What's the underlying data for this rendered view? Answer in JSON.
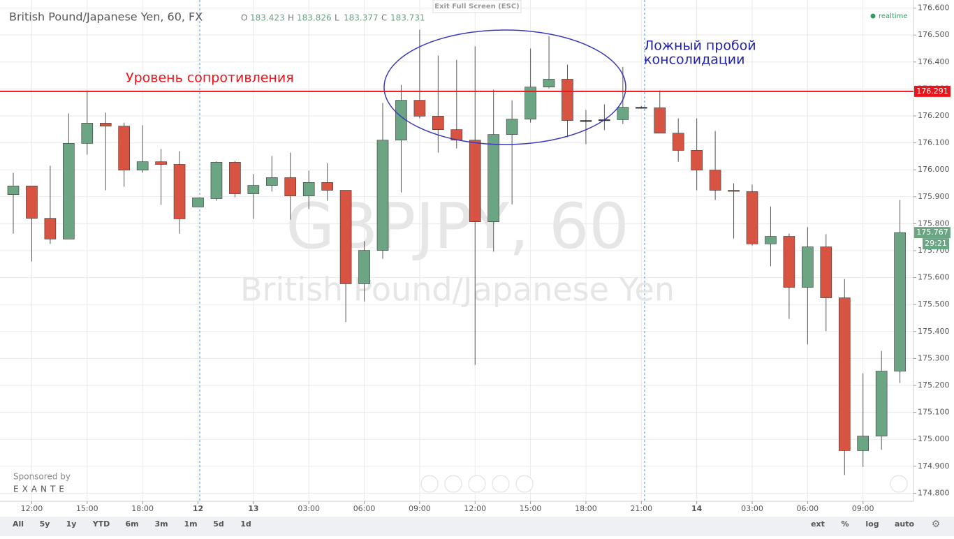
{
  "chart_data": {
    "type": "candlestick",
    "title": "British Pound/Japanese Yen, 60, FX",
    "ohlc_legend": [
      {
        "label": "O",
        "value": 183.423
      },
      {
        "label": "H",
        "value": 183.826
      },
      {
        "label": "L",
        "value": 183.377
      },
      {
        "label": "C",
        "value": 183.731
      }
    ],
    "exit_button": "Exit Full Screen (ESC)",
    "status": "realtime",
    "watermark": [
      "GBPJPY, 60",
      "British Pound/Japanese Yen"
    ],
    "sponsor": [
      "Sponsored by",
      "EXANTE"
    ],
    "categories": [
      null,
      "12:00",
      null,
      null,
      "15:00",
      null,
      null,
      "18:00",
      null,
      null,
      "12",
      null,
      null,
      "13",
      null,
      null,
      "03:00",
      null,
      null,
      "06:00",
      null,
      null,
      "09:00",
      null,
      null,
      "12:00",
      null,
      null,
      "15:00",
      null,
      null,
      "18:00",
      null,
      null,
      "21:00",
      null,
      null,
      "14",
      null,
      null,
      "03:00",
      null,
      null,
      "06:00",
      null,
      null,
      "09:00",
      null,
      null
    ],
    "open": [
      175.908,
      175.94,
      175.82,
      175.743,
      176.098,
      176.173,
      176.162,
      175.999,
      176.03,
      176.02,
      175.862,
      175.893,
      176.028,
      175.911,
      175.942,
      175.971,
      175.903,
      175.953,
      175.924,
      175.577,
      175.701,
      176.11,
      176.258,
      176.199,
      176.149,
      176.11,
      175.807,
      176.131,
      176.188,
      176.307,
      176.336,
      176.183,
      176.186,
      176.186,
      176.232,
      176.23,
      176.136,
      176.072,
      175.999,
      175.924,
      175.919,
      175.725,
      175.753,
      175.564,
      175.714,
      175.525,
      174.958,
      175.012,
      175.253
    ],
    "high": [
      175.989,
      175.94,
      176.015,
      176.209,
      176.294,
      176.212,
      176.175,
      176.165,
      176.077,
      176.069,
      175.896,
      176.031,
      176.033,
      175.984,
      176.051,
      176.064,
      175.997,
      176.025,
      175.924,
      175.735,
      176.248,
      176.315,
      176.52,
      176.424,
      176.408,
      176.458,
      176.297,
      176.258,
      176.45,
      176.496,
      176.39,
      176.222,
      176.243,
      176.382,
      176.237,
      176.294,
      176.191,
      176.191,
      176.144,
      175.95,
      175.945,
      175.864,
      175.763,
      175.787,
      175.761,
      175.595,
      175.245,
      175.328,
      175.888
    ],
    "low": [
      175.763,
      175.66,
      175.725,
      175.743,
      176.056,
      175.924,
      175.937,
      175.989,
      175.87,
      175.763,
      175.862,
      175.885,
      175.898,
      175.818,
      175.919,
      175.815,
      175.854,
      175.885,
      175.435,
      175.512,
      175.67,
      175.916,
      176.191,
      176.064,
      176.079,
      175.276,
      175.696,
      175.872,
      176.175,
      176.302,
      176.121,
      176.095,
      176.147,
      176.17,
      176.227,
      176.136,
      176.03,
      175.924,
      175.888,
      175.745,
      175.719,
      175.642,
      175.447,
      175.352,
      175.401,
      174.867,
      174.898,
      174.961,
      175.209
    ],
    "close": [
      175.94,
      175.82,
      175.743,
      176.098,
      176.173,
      176.162,
      175.999,
      176.03,
      176.02,
      175.818,
      175.896,
      176.028,
      175.911,
      175.942,
      175.971,
      175.903,
      175.953,
      175.924,
      175.577,
      175.701,
      176.11,
      176.258,
      176.199,
      176.149,
      176.11,
      175.807,
      176.131,
      176.188,
      176.307,
      176.336,
      176.183,
      176.183,
      176.186,
      176.232,
      176.232,
      176.136,
      176.072,
      175.999,
      175.924,
      175.92,
      175.725,
      175.753,
      175.564,
      175.714,
      175.525,
      174.958,
      175.012,
      175.253,
      175.767
    ],
    "up_color": "#6ba583",
    "down_color": "#d75442",
    "countdown": "29:21",
    "resistance": {
      "value": 176.291,
      "label": "Уровень сопротивления",
      "color": "#e8161b"
    },
    "false_breakout": [
      "Ложный пробой",
      "консолидации"
    ],
    "ylim": [
      174.77,
      176.63
    ],
    "yticks": [
      {
        "value": 174.8,
        "label": "174.800"
      },
      {
        "value": 174.9,
        "label": "174.900"
      },
      {
        "value": 175.0,
        "label": "175.000"
      },
      {
        "value": 175.1,
        "label": "175.100"
      },
      {
        "value": 175.2,
        "label": "175.200"
      },
      {
        "value": 175.3,
        "label": "175.300"
      },
      {
        "value": 175.4,
        "label": "175.400"
      },
      {
        "value": 175.5,
        "label": "175.500"
      },
      {
        "value": 175.6,
        "label": "175.600"
      },
      {
        "value": 175.7,
        "label": "175.700"
      },
      {
        "value": 175.8,
        "label": "175.800"
      },
      {
        "value": 175.9,
        "label": "175.900"
      },
      {
        "value": 176.0,
        "label": "176.000"
      },
      {
        "value": 176.1,
        "label": "176.100"
      },
      {
        "value": 176.2,
        "label": "176.200"
      },
      {
        "value": 176.3,
        "label": "176.300"
      },
      {
        "value": 176.4,
        "label": "176.400"
      },
      {
        "value": 176.5,
        "label": "176.500"
      },
      {
        "value": 176.6,
        "label": "176.600"
      }
    ],
    "grid": true,
    "toolbar_left": [
      "All",
      "5y",
      "1y",
      "YTD",
      "6m",
      "3m",
      "1m",
      "5d",
      "1d"
    ],
    "toolbar_right": [
      "ext",
      "%",
      "log",
      "auto"
    ]
  }
}
